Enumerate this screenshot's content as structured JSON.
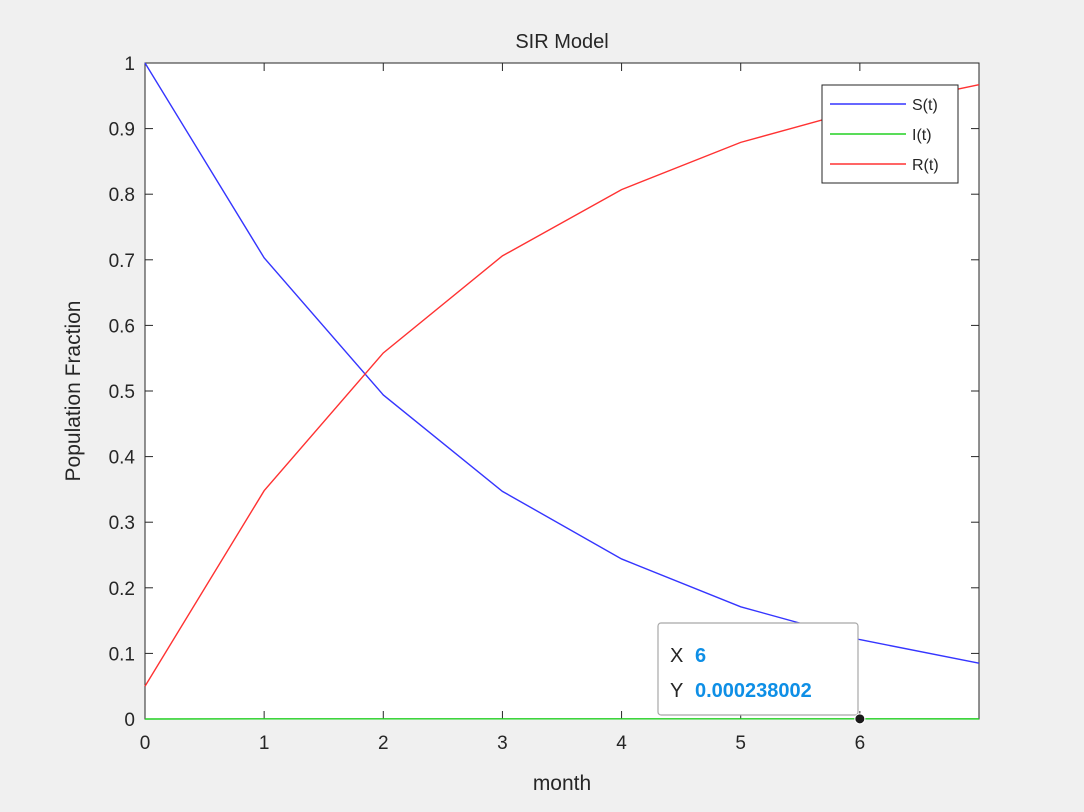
{
  "chart_data": {
    "type": "line",
    "title": "SIR Model",
    "xlabel": "month",
    "ylabel": "Population Fraction",
    "xlim": [
      0,
      7
    ],
    "ylim": [
      0,
      1
    ],
    "xticks": [
      0,
      1,
      2,
      3,
      4,
      5,
      6
    ],
    "xtick_labels": [
      "0",
      "1",
      "2",
      "3",
      "4",
      "5",
      "6"
    ],
    "yticks": [
      0,
      0.1,
      0.2,
      0.3,
      0.4,
      0.5,
      0.6,
      0.7,
      0.8,
      0.9,
      1
    ],
    "ytick_labels": [
      "0",
      "0.1",
      "0.2",
      "0.3",
      "0.4",
      "0.5",
      "0.6",
      "0.7",
      "0.8",
      "0.9",
      "1"
    ],
    "grid": false,
    "legend_position": "top-right",
    "x": [
      0,
      1,
      2,
      3,
      4,
      5,
      6,
      7
    ],
    "series": [
      {
        "name": "S(t)",
        "color": "#3535ff",
        "values": [
          1.0,
          0.703,
          0.494,
          0.347,
          0.244,
          0.171,
          0.121,
          0.085
        ]
      },
      {
        "name": "I(t)",
        "color": "#22d022",
        "values": [
          0.0,
          0.0003,
          0.0003,
          0.0003,
          0.0003,
          0.0003,
          0.000238002,
          0.0002
        ]
      },
      {
        "name": "R(t)",
        "color": "#ff3232",
        "values": [
          0.05,
          0.348,
          0.558,
          0.706,
          0.807,
          0.879,
          0.929,
          0.967
        ]
      }
    ],
    "datatip": {
      "x_label": "X",
      "x_value": "6",
      "y_label": "Y",
      "y_value": "0.000238002",
      "series": "I(t)",
      "x": 6,
      "y": 0.000238002
    }
  }
}
